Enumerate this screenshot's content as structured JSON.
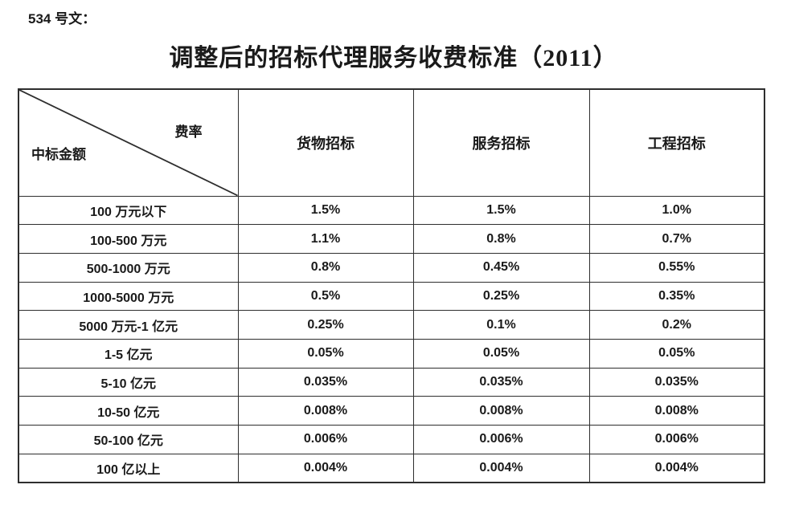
{
  "doc_number": "534 号文：",
  "title": "调整后的招标代理服务收费标准（2011）",
  "table": {
    "corner": {
      "top_right": "费率",
      "bottom_left": "中标金额"
    },
    "columns": [
      "货物招标",
      "服务招标",
      "工程招标"
    ],
    "rows": [
      {
        "label": "100 万元以下",
        "values": [
          "1.5%",
          "1.5%",
          "1.0%"
        ]
      },
      {
        "label": "100-500 万元",
        "values": [
          "1.1%",
          "0.8%",
          "0.7%"
        ]
      },
      {
        "label": "500-1000 万元",
        "values": [
          "0.8%",
          "0.45%",
          "0.55%"
        ]
      },
      {
        "label": "1000-5000 万元",
        "values": [
          "0.5%",
          "0.25%",
          "0.35%"
        ]
      },
      {
        "label": "5000 万元-1 亿元",
        "values": [
          "0.25%",
          "0.1%",
          "0.2%"
        ]
      },
      {
        "label": "1-5 亿元",
        "values": [
          "0.05%",
          "0.05%",
          "0.05%"
        ]
      },
      {
        "label": "5-10 亿元",
        "values": [
          "0.035%",
          "0.035%",
          "0.035%"
        ]
      },
      {
        "label": "10-50 亿元",
        "values": [
          "0.008%",
          "0.008%",
          "0.008%"
        ]
      },
      {
        "label": "50-100 亿元",
        "values": [
          "0.006%",
          "0.006%",
          "0.006%"
        ]
      },
      {
        "label": "100 亿以上",
        "values": [
          "0.004%",
          "0.004%",
          "0.004%"
        ]
      }
    ]
  },
  "colors": {
    "text": "#1a1a1a",
    "border": "#2e2e2e",
    "background": "#ffffff"
  }
}
